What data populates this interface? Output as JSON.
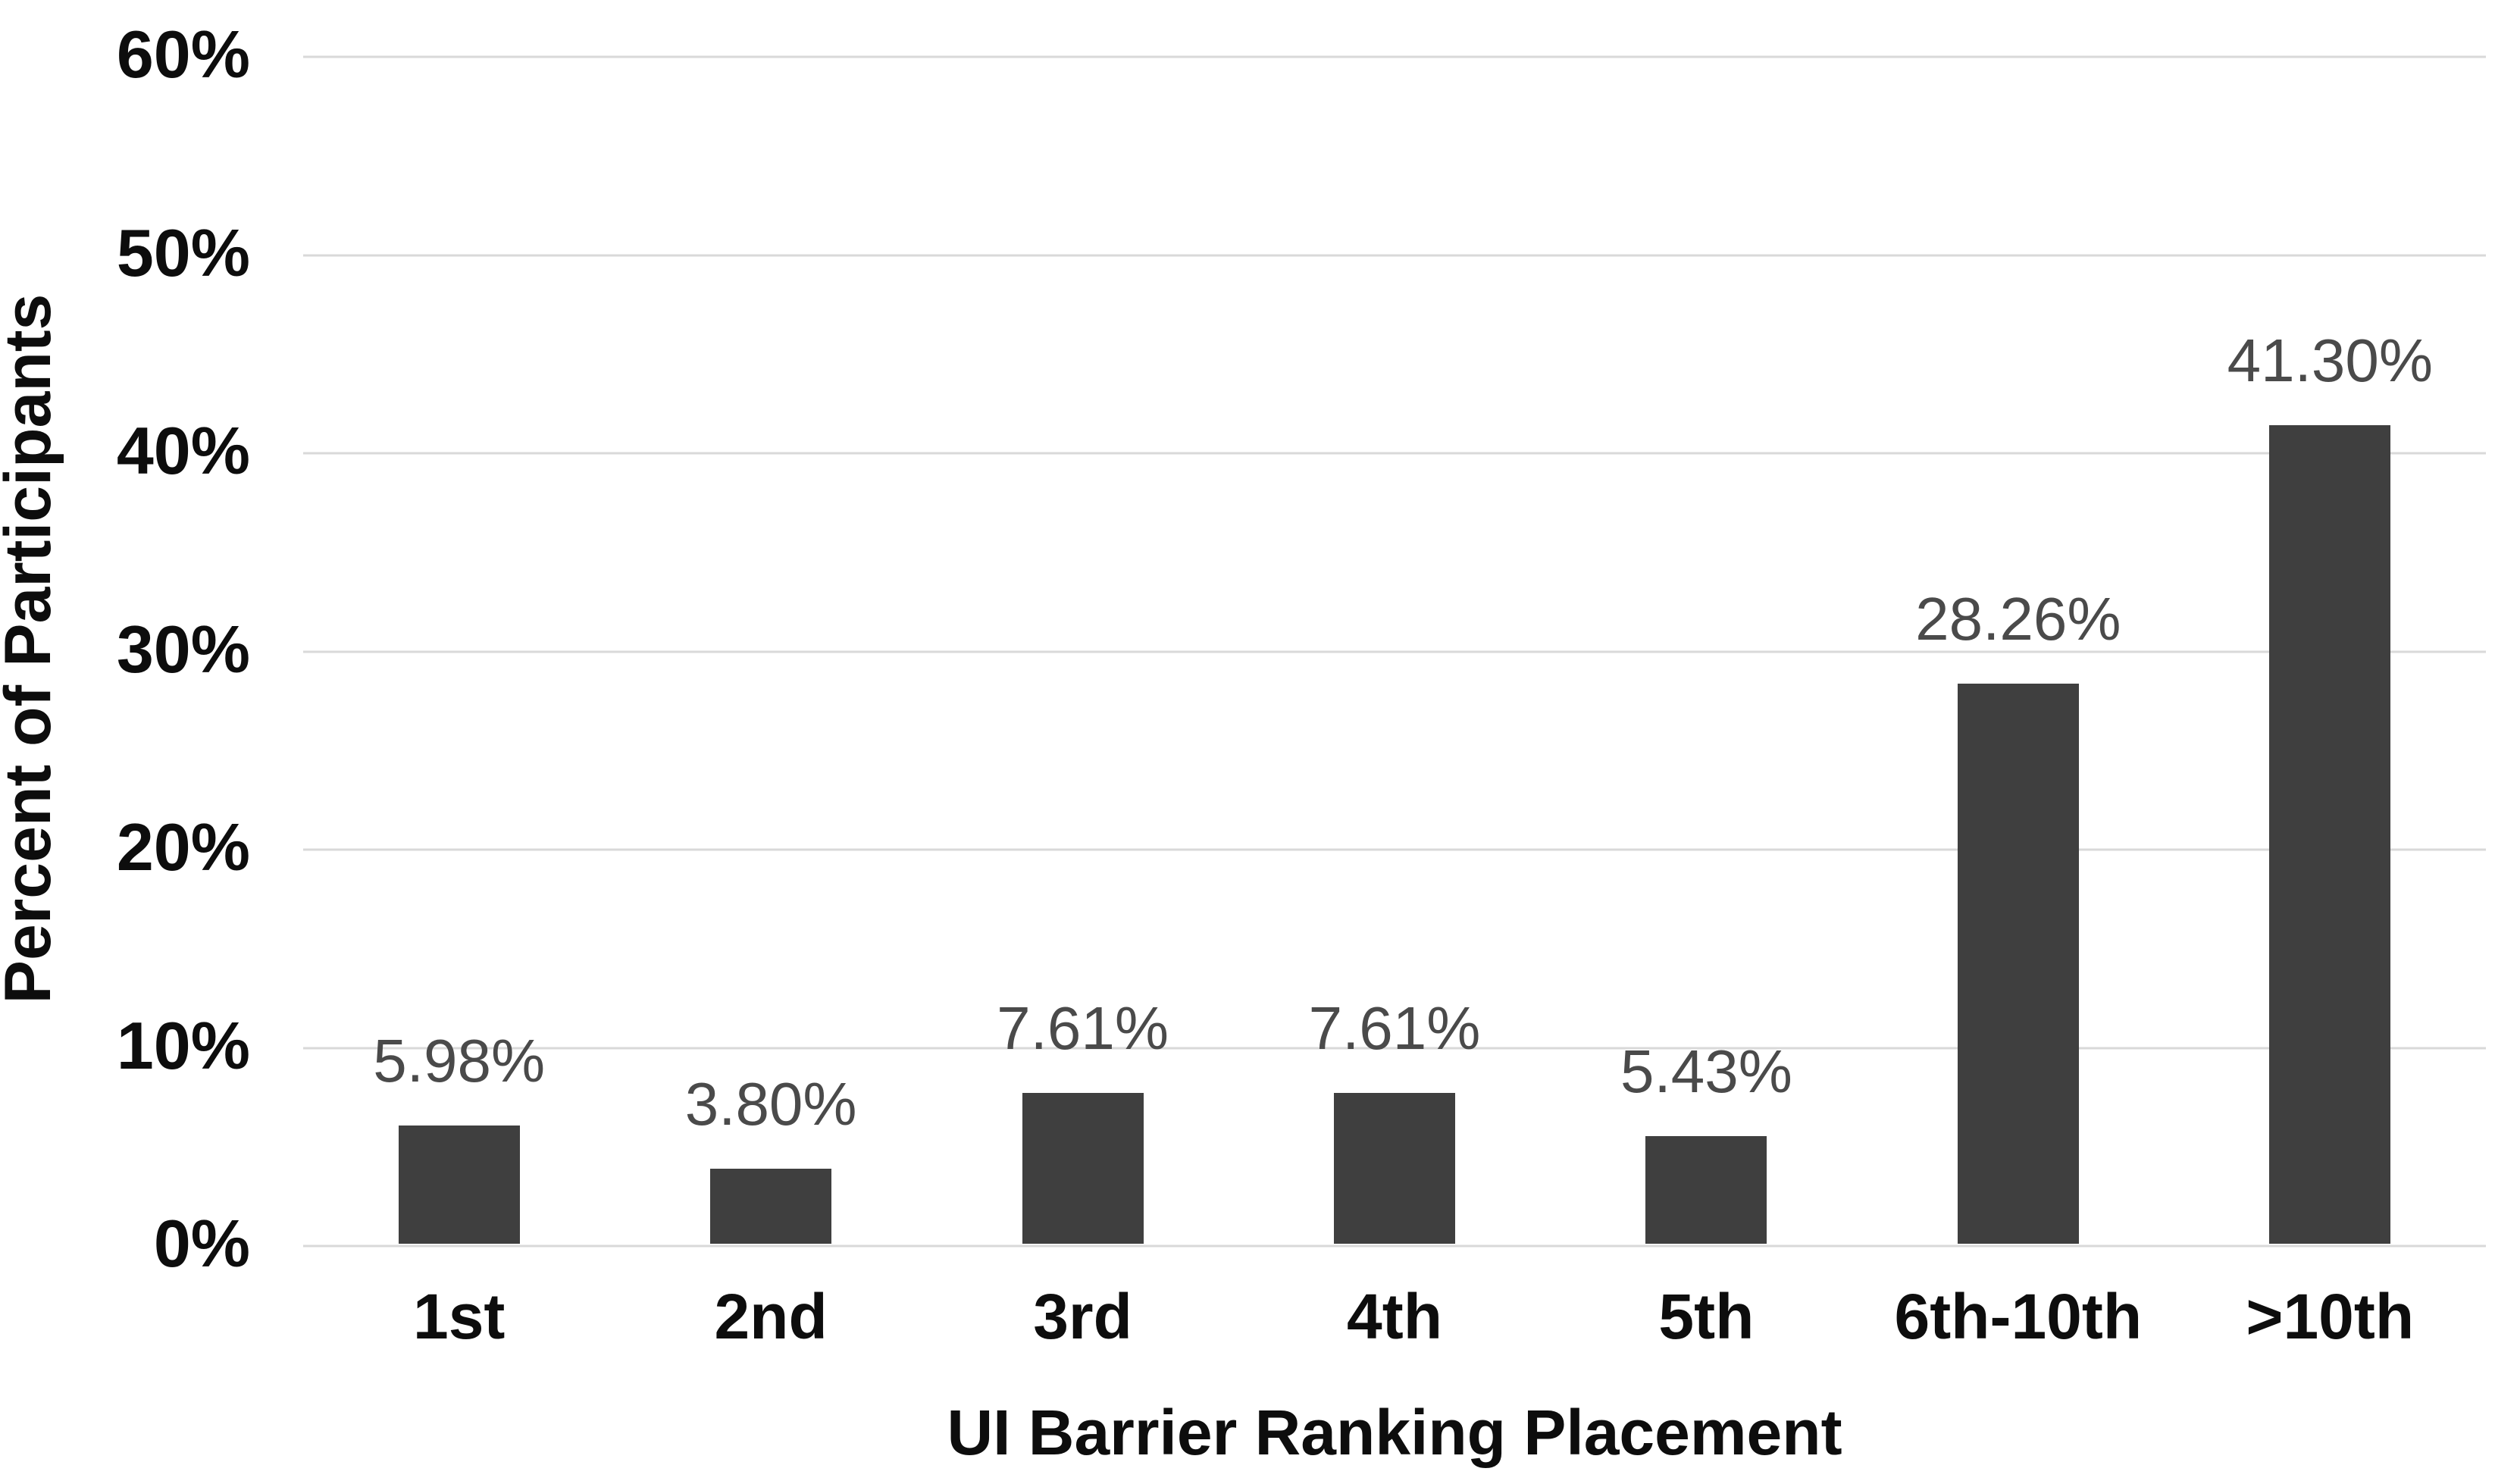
{
  "chart_data": {
    "type": "bar",
    "title": "",
    "categories": [
      "1st",
      "2nd",
      "3rd",
      "4th",
      "5th",
      "6th-10th",
      ">10th"
    ],
    "values": [
      5.98,
      3.8,
      7.61,
      7.61,
      5.43,
      28.26,
      41.3
    ],
    "data_labels": [
      "5.98%",
      "3.80%",
      "7.61%",
      "7.61%",
      "5.43%",
      "28.26%",
      "41.30%"
    ],
    "xlabel": "UI Barrier Ranking Placement",
    "ylabel": "Percent of Participants",
    "ylim": [
      0,
      60
    ],
    "ytick_step": 10,
    "ytick_labels": [
      "0%",
      "10%",
      "20%",
      "30%",
      "40%",
      "50%",
      "60%"
    ],
    "grid": true,
    "legend": false,
    "colors": {
      "bar": "#3f3f3f",
      "data_label": "#4a4a4a",
      "axis_text": "#0d0d0d",
      "gridline": "#d9d9d9",
      "background": "#ffffff"
    }
  }
}
